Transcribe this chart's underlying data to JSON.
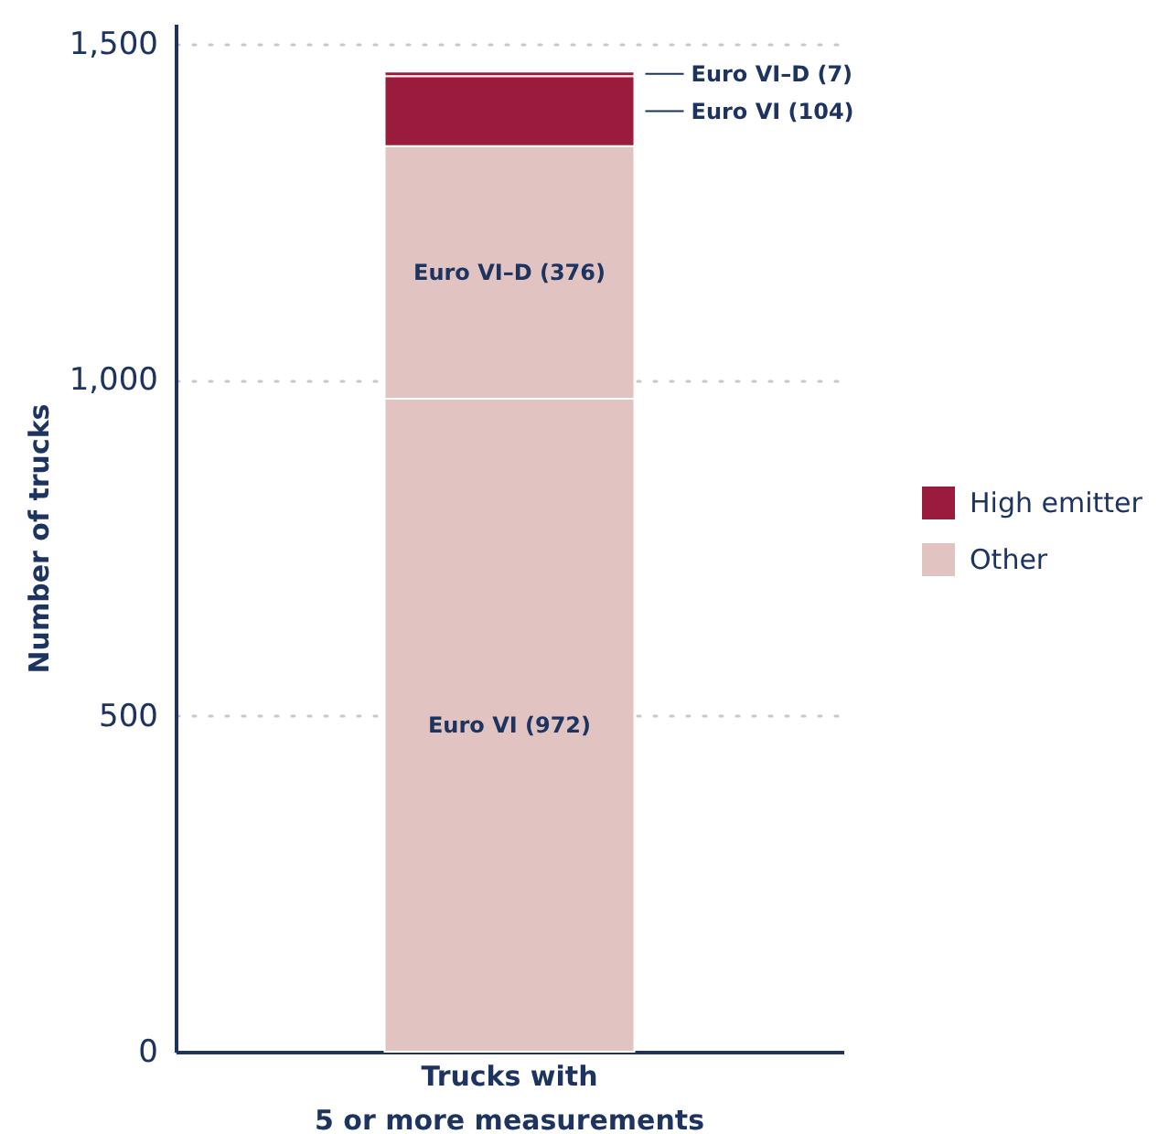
{
  "chart_data": {
    "type": "bar",
    "ylabel": "Number of trucks",
    "categories": [
      "Trucks with\n5 or more measurements"
    ],
    "stacked": true,
    "series": [
      {
        "name": "Other",
        "color": "#e1c3c2",
        "values": [
          972
        ],
        "value_labels": [
          "Euro VI (972)"
        ]
      },
      {
        "color": "#e1c3c2",
        "values": [
          376
        ],
        "value_labels": [
          "Euro VI–D (376)"
        ]
      },
      {
        "name": "High emitter",
        "color": "#9b1b3d",
        "values": [
          104
        ],
        "value_labels": [
          "Euro VI (104)"
        ]
      },
      {
        "color": "#9b1b3d",
        "values": [
          7
        ],
        "value_labels": [
          "Euro VI–D (7)"
        ]
      }
    ],
    "ylim": [
      0,
      1530
    ],
    "yticks": [
      0,
      500,
      {
        "value": 1000,
        "label": "1,000"
      },
      {
        "value": 1500,
        "label": "1,500"
      }
    ],
    "grid": "y",
    "legend": "right"
  }
}
